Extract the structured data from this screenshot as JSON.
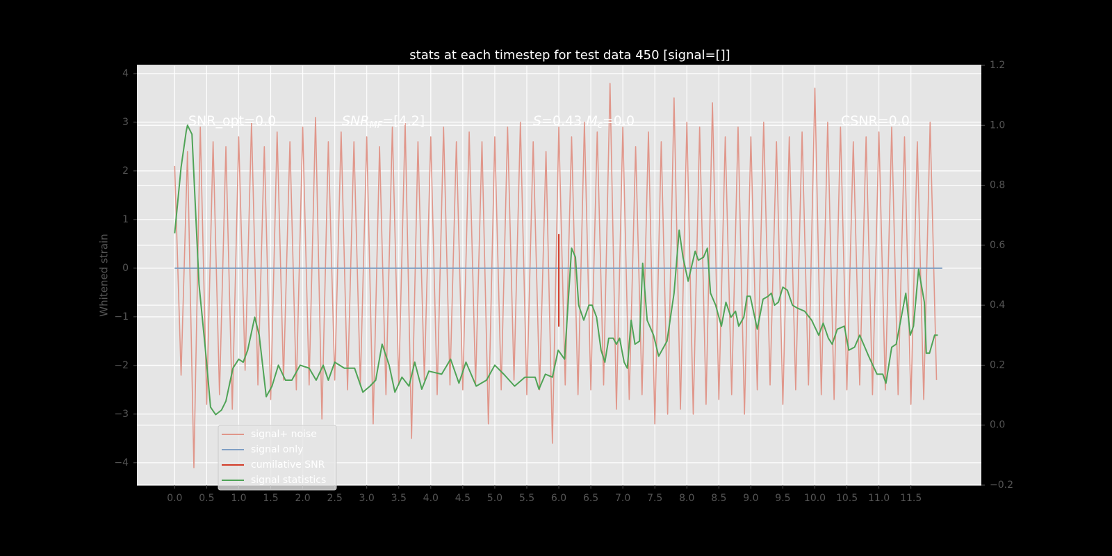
{
  "chart_data": {
    "type": "line",
    "title": "stats at each timestep for test data 450 [signal=[]]",
    "ylabel": "Whitened strain",
    "xlim": [
      -0.59,
      12.6
    ],
    "ylim": [
      -4.46,
      4.17
    ],
    "y2lim": [
      -0.2,
      1.2
    ],
    "xticks": [
      {
        "value": 0,
        "label": "0.0"
      },
      0.5,
      {
        "value": 1,
        "label": "1.0"
      },
      1.5,
      {
        "value": 2,
        "label": "2.0"
      },
      2.5,
      {
        "value": 3,
        "label": "3.0"
      },
      3.5,
      {
        "value": 4,
        "label": "4.0"
      },
      4.5,
      {
        "value": 5,
        "label": "5.0"
      },
      5.5,
      {
        "value": 6,
        "label": "6.0"
      },
      6.5,
      {
        "value": 7,
        "label": "7.0"
      },
      7.5,
      {
        "value": 8,
        "label": "8.0"
      },
      8.5,
      {
        "value": 9,
        "label": "9.0"
      },
      9.5,
      {
        "value": 10,
        "label": "10.0"
      },
      10.5,
      {
        "value": 11,
        "label": "11.0"
      },
      11.5
    ],
    "yticks": [
      {
        "value": -4,
        "label": "−4"
      },
      {
        "value": -3,
        "label": "−3"
      },
      {
        "value": -2,
        "label": "−2"
      },
      {
        "value": -1,
        "label": "−1"
      },
      0,
      1,
      2,
      3,
      4
    ],
    "y2ticks": [
      {
        "value": -0.2,
        "label": "−0.2"
      },
      {
        "value": 0,
        "label": "0.0"
      },
      0.2,
      0.4,
      0.6,
      0.8,
      {
        "value": 1,
        "label": "1.0"
      },
      1.2
    ],
    "grid": true,
    "legend_loc": "lower left",
    "annotations": [
      [
        {
          "text": "SNR_opt=0.0",
          "style": "normal"
        }
      ],
      [
        {
          "text": "SNR",
          "style": "italic"
        },
        {
          "text": "MF",
          "style": "sub"
        },
        {
          "text": "=[4.2]",
          "style": "normal"
        }
      ],
      [
        {
          "text": "S",
          "style": "italic"
        },
        {
          "text": "=0.43   ",
          "style": "normal"
        },
        {
          "text": "M",
          "style": "italic"
        },
        {
          "text": "c",
          "style": "sub"
        },
        {
          "text": "=0.0",
          "style": "normal"
        }
      ],
      [
        {
          "text": "CSNR=0.0",
          "style": "normal"
        }
      ]
    ],
    "series": [
      {
        "name": "signal+ noise",
        "color": "#e0968a",
        "axis": "y",
        "x": [
          0,
          0.1,
          0.2,
          0.3,
          0.4,
          0.5,
          0.6,
          0.7,
          0.8,
          0.9,
          1,
          1.1,
          1.2,
          1.3,
          1.4,
          1.5,
          1.6,
          1.7,
          1.8,
          1.9,
          2,
          2.1,
          2.2,
          2.3,
          2.4,
          2.5,
          2.6,
          2.7,
          2.8,
          2.9,
          3,
          3.1,
          3.2,
          3.3,
          3.4,
          3.5,
          3.6,
          3.7,
          3.8,
          3.9,
          4,
          4.1,
          4.2,
          4.3,
          4.4,
          4.5,
          4.6,
          4.7,
          4.8,
          4.9,
          5,
          5.1,
          5.2,
          5.3,
          5.4,
          5.5,
          5.6,
          5.7,
          5.8,
          5.9,
          6,
          6.1,
          6.2,
          6.3,
          6.4,
          6.5,
          6.6,
          6.7,
          6.8,
          6.9,
          7,
          7.1,
          7.2,
          7.3,
          7.4,
          7.5,
          7.6,
          7.7,
          7.8,
          7.9,
          8,
          8.1,
          8.2,
          8.3,
          8.4,
          8.5,
          8.6,
          8.7,
          8.8,
          8.9,
          9,
          9.1,
          9.2,
          9.3,
          9.4,
          9.5,
          9.6,
          9.7,
          9.8,
          9.9,
          10,
          10.1,
          10.2,
          10.3,
          10.4,
          10.5,
          10.6,
          10.7,
          10.8,
          10.9,
          11,
          11.1,
          11.2,
          11.3,
          11.4,
          11.5,
          11.6,
          11.7,
          11.8,
          11.9
        ],
        "values": [
          2.1,
          -2.2,
          2.4,
          -4.1,
          2.9,
          -2.8,
          2.6,
          -2.6,
          2.5,
          -2.9,
          2.7,
          -2.1,
          3.0,
          -2.4,
          2.5,
          -2.7,
          2.8,
          -2.3,
          2.6,
          -2.5,
          2.9,
          -2.4,
          3.1,
          -3.1,
          2.6,
          -2.3,
          2.8,
          -2.5,
          2.6,
          -2.4,
          2.7,
          -3.2,
          2.5,
          -2.6,
          2.9,
          -2.4,
          3.0,
          -3.5,
          2.6,
          -2.3,
          2.7,
          -2.6,
          2.9,
          -2.4,
          2.6,
          -2.5,
          2.8,
          -2.4,
          2.6,
          -3.2,
          2.7,
          -2.5,
          2.9,
          -2.3,
          3.0,
          -2.6,
          2.6,
          -2.5,
          2.4,
          -3.6,
          2.9,
          -2.4,
          2.7,
          -2.6,
          3.0,
          -2.5,
          2.8,
          -2.4,
          3.8,
          -2.9,
          2.9,
          -2.7,
          2.5,
          -2.6,
          2.8,
          -3.2,
          2.6,
          -3.0,
          3.5,
          -2.9,
          3.0,
          -3.0,
          2.9,
          -2.8,
          3.4,
          -2.7,
          2.7,
          -2.6,
          2.9,
          -3.0,
          2.7,
          -2.5,
          3.0,
          -2.4,
          2.6,
          -2.8,
          2.7,
          -2.5,
          2.8,
          -2.4,
          3.7,
          -2.6,
          3.0,
          -2.7,
          2.9,
          -2.5,
          2.6,
          -2.4,
          2.7,
          -2.6,
          2.8,
          -2.5,
          2.9,
          -2.6,
          2.7,
          -2.8,
          2.6,
          -2.7,
          3.0,
          -2.3
        ]
      },
      {
        "name": "signal only",
        "color": "#7f9fc4",
        "axis": "y",
        "x": [
          0,
          11.99
        ],
        "values": [
          0,
          0
        ]
      },
      {
        "name": "cumilative SNR",
        "color": "#d23c28",
        "axis": "y",
        "x": [
          6,
          6
        ],
        "values": [
          0.7,
          -1.2
        ]
      },
      {
        "name": "signal statistics",
        "color": "#4fa356",
        "axis": "y2",
        "x": [
          0,
          0.1,
          0.18,
          0.2,
          0.27,
          0.38,
          0.49,
          0.56,
          0.64,
          0.73,
          0.8,
          0.91,
          1,
          1.07,
          1.14,
          1.25,
          1.32,
          1.43,
          1.52,
          1.62,
          1.73,
          1.83,
          1.96,
          2.1,
          2.21,
          2.32,
          2.4,
          2.5,
          2.65,
          2.81,
          2.94,
          3.05,
          3.14,
          3.24,
          3.35,
          3.44,
          3.55,
          3.66,
          3.75,
          3.86,
          3.97,
          4.17,
          4.31,
          4.44,
          4.55,
          4.71,
          4.87,
          5,
          5.14,
          5.31,
          5.47,
          5.63,
          5.69,
          5.79,
          5.9,
          5.99,
          6.09,
          6.2,
          6.26,
          6.31,
          6.39,
          6.47,
          6.52,
          6.59,
          6.66,
          6.72,
          6.78,
          6.85,
          6.9,
          6.95,
          7.02,
          7.07,
          7.13,
          7.19,
          7.26,
          7.31,
          7.38,
          7.48,
          7.56,
          7.69,
          7.8,
          7.88,
          7.94,
          8.02,
          8.13,
          8.18,
          8.26,
          8.32,
          8.37,
          8.45,
          8.54,
          8.61,
          8.69,
          8.76,
          8.81,
          8.89,
          8.94,
          8.99,
          9.1,
          9.19,
          9.27,
          9.32,
          9.37,
          9.43,
          9.5,
          9.57,
          9.65,
          9.73,
          9.84,
          9.95,
          10.06,
          10.13,
          10.21,
          10.27,
          10.35,
          10.46,
          10.53,
          10.62,
          10.7,
          10.84,
          10.97,
          11.06,
          11.11,
          11.2,
          11.27,
          11.42,
          11.49,
          11.54,
          11.62,
          11.71,
          11.74,
          11.79,
          11.87,
          11.92
        ],
        "values": [
          0.64,
          0.86,
          0.98,
          1.0,
          0.97,
          0.47,
          0.23,
          0.06,
          0.035,
          0.05,
          0.08,
          0.19,
          0.22,
          0.21,
          0.25,
          0.36,
          0.3,
          0.095,
          0.13,
          0.2,
          0.15,
          0.15,
          0.2,
          0.19,
          0.15,
          0.2,
          0.15,
          0.21,
          0.19,
          0.19,
          0.11,
          0.13,
          0.15,
          0.27,
          0.2,
          0.11,
          0.16,
          0.13,
          0.21,
          0.12,
          0.18,
          0.17,
          0.22,
          0.14,
          0.21,
          0.13,
          0.15,
          0.2,
          0.17,
          0.13,
          0.16,
          0.16,
          0.12,
          0.17,
          0.16,
          0.25,
          0.22,
          0.59,
          0.56,
          0.4,
          0.35,
          0.4,
          0.4,
          0.36,
          0.25,
          0.21,
          0.29,
          0.29,
          0.27,
          0.29,
          0.21,
          0.19,
          0.35,
          0.27,
          0.28,
          0.54,
          0.35,
          0.3,
          0.23,
          0.28,
          0.44,
          0.65,
          0.56,
          0.48,
          0.58,
          0.55,
          0.56,
          0.59,
          0.44,
          0.4,
          0.33,
          0.41,
          0.36,
          0.38,
          0.33,
          0.36,
          0.43,
          0.43,
          0.32,
          0.42,
          0.43,
          0.44,
          0.4,
          0.41,
          0.46,
          0.45,
          0.4,
          0.39,
          0.38,
          0.35,
          0.3,
          0.34,
          0.29,
          0.27,
          0.32,
          0.33,
          0.25,
          0.26,
          0.3,
          0.23,
          0.17,
          0.17,
          0.14,
          0.26,
          0.27,
          0.44,
          0.3,
          0.33,
          0.52,
          0.41,
          0.24,
          0.24,
          0.3,
          0.3
        ]
      }
    ]
  }
}
